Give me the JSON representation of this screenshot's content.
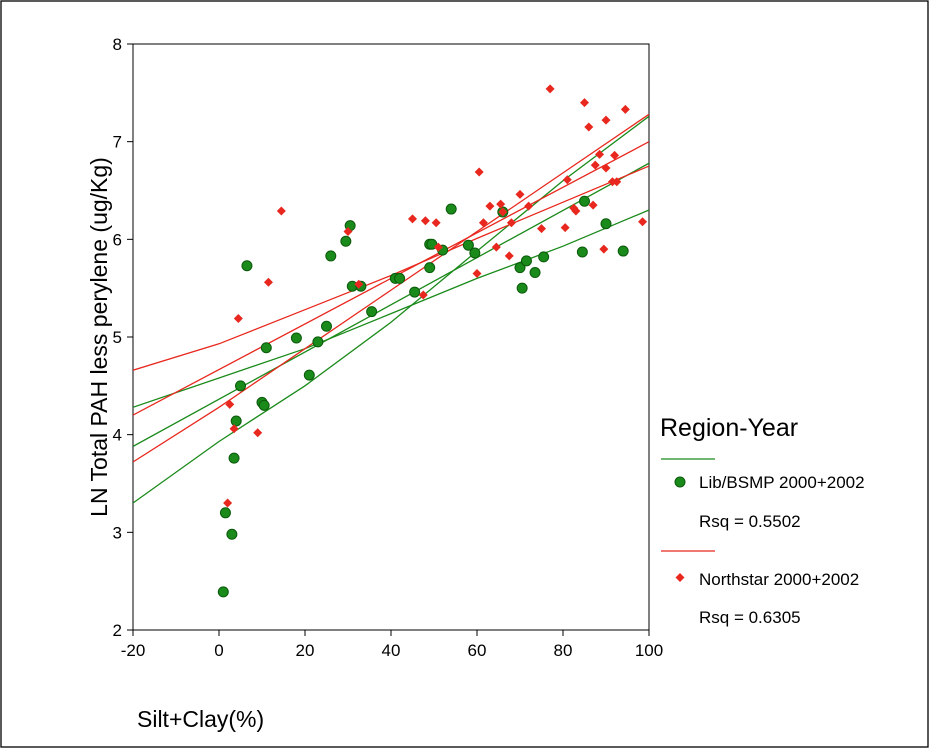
{
  "chart_data": {
    "type": "scatter",
    "title": "",
    "xlabel": "Silt+Clay(%)",
    "ylabel": "LN Total PAH less perylene (ug/Kg)",
    "xlim": [
      -20,
      100
    ],
    "ylim": [
      2,
      8
    ],
    "x_ticks": [
      -20,
      0,
      20,
      40,
      60,
      80,
      100
    ],
    "y_ticks": [
      2,
      3,
      4,
      5,
      6,
      7,
      8
    ],
    "legend": {
      "title": "Region-Year",
      "placement": "right",
      "entries": [
        {
          "label": "Lib/BSMP 2000+2002",
          "rsq": "Rsq = 0.5502"
        },
        {
          "label": "Northstar 2000+2002",
          "rsq": "Rsq = 0.6305"
        }
      ]
    },
    "series": [
      {
        "name": "Lib/BSMP 2000+2002",
        "color": "#1a8a1a",
        "marker": "circle",
        "points": [
          [
            1,
            2.39
          ],
          [
            1.5,
            3.2
          ],
          [
            3,
            2.98
          ],
          [
            3.5,
            3.76
          ],
          [
            4,
            4.14
          ],
          [
            5,
            4.5
          ],
          [
            6.5,
            5.73
          ],
          [
            10,
            4.33
          ],
          [
            10.5,
            4.3
          ],
          [
            11,
            4.89
          ],
          [
            18,
            4.99
          ],
          [
            21,
            4.61
          ],
          [
            23,
            4.95
          ],
          [
            25,
            5.11
          ],
          [
            26,
            5.83
          ],
          [
            29.5,
            5.98
          ],
          [
            30.5,
            6.14
          ],
          [
            31,
            5.52
          ],
          [
            33,
            5.52
          ],
          [
            35.5,
            5.26
          ],
          [
            41,
            5.6
          ],
          [
            42,
            5.6
          ],
          [
            45.5,
            5.46
          ],
          [
            49,
            5.71
          ],
          [
            49,
            5.95
          ],
          [
            49.5,
            5.95
          ],
          [
            52,
            5.89
          ],
          [
            54,
            6.31
          ],
          [
            58,
            5.94
          ],
          [
            59.5,
            5.86
          ],
          [
            66,
            6.28
          ],
          [
            70,
            5.71
          ],
          [
            70.5,
            5.5
          ],
          [
            71.5,
            5.78
          ],
          [
            73.5,
            5.66
          ],
          [
            75.5,
            5.82
          ],
          [
            84.5,
            5.87
          ],
          [
            85,
            6.39
          ],
          [
            90,
            6.16
          ],
          [
            94,
            5.88
          ]
        ],
        "fit_line": [
          [
            -20,
            3.88
          ],
          [
            100,
            6.78
          ]
        ],
        "ci_lines": [
          [
            [
              -20,
              4.28
            ],
            [
              0,
              4.58
            ],
            [
              20,
              4.88
            ],
            [
              40,
              5.24
            ],
            [
              60,
              5.6
            ],
            [
              80,
              5.93
            ],
            [
              100,
              6.3
            ]
          ],
          [
            [
              -20,
              3.3
            ],
            [
              0,
              3.93
            ],
            [
              20,
              4.5
            ],
            [
              40,
              5.15
            ],
            [
              60,
              5.88
            ],
            [
              80,
              6.6
            ],
            [
              100,
              7.26
            ]
          ]
        ]
      },
      {
        "name": "Northstar 2000+2002",
        "color": "#e8281e",
        "marker": "diamond",
        "points": [
          [
            2,
            3.3
          ],
          [
            2.5,
            4.31
          ],
          [
            3.5,
            4.06
          ],
          [
            4.5,
            5.19
          ],
          [
            9,
            4.02
          ],
          [
            11.5,
            5.56
          ],
          [
            14.5,
            6.29
          ],
          [
            30,
            6.08
          ],
          [
            32.5,
            5.54
          ],
          [
            45,
            6.21
          ],
          [
            47.5,
            5.43
          ],
          [
            48,
            6.19
          ],
          [
            50.5,
            6.17
          ],
          [
            51,
            5.92
          ],
          [
            60,
            5.65
          ],
          [
            60.5,
            6.69
          ],
          [
            61.5,
            6.17
          ],
          [
            63,
            6.34
          ],
          [
            64.5,
            5.92
          ],
          [
            65.5,
            6.36
          ],
          [
            66,
            6.28
          ],
          [
            67.5,
            5.83
          ],
          [
            68,
            6.17
          ],
          [
            70,
            6.46
          ],
          [
            72,
            6.34
          ],
          [
            75,
            6.11
          ],
          [
            77,
            7.54
          ],
          [
            80.5,
            6.12
          ],
          [
            81,
            6.61
          ],
          [
            82.5,
            6.32
          ],
          [
            83,
            6.29
          ],
          [
            85,
            7.4
          ],
          [
            86,
            7.15
          ],
          [
            87,
            6.35
          ],
          [
            87.5,
            6.76
          ],
          [
            88.5,
            6.87
          ],
          [
            89.5,
            5.9
          ],
          [
            90,
            7.22
          ],
          [
            90,
            6.73
          ],
          [
            91.5,
            6.59
          ],
          [
            92,
            6.86
          ],
          [
            92.5,
            6.59
          ],
          [
            94.5,
            7.33
          ],
          [
            98.5,
            6.18
          ]
        ],
        "fit_line": [
          [
            -20,
            4.2
          ],
          [
            100,
            7.0
          ]
        ],
        "ci_lines": [
          [
            [
              -20,
              4.66
            ],
            [
              0,
              4.93
            ],
            [
              20,
              5.28
            ],
            [
              40,
              5.63
            ],
            [
              60,
              6.01
            ],
            [
              80,
              6.38
            ],
            [
              100,
              6.75
            ]
          ],
          [
            [
              -20,
              3.72
            ],
            [
              0,
              4.28
            ],
            [
              20,
              4.88
            ],
            [
              40,
              5.48
            ],
            [
              60,
              6.08
            ],
            [
              80,
              6.68
            ],
            [
              100,
              7.28
            ]
          ]
        ]
      }
    ]
  }
}
